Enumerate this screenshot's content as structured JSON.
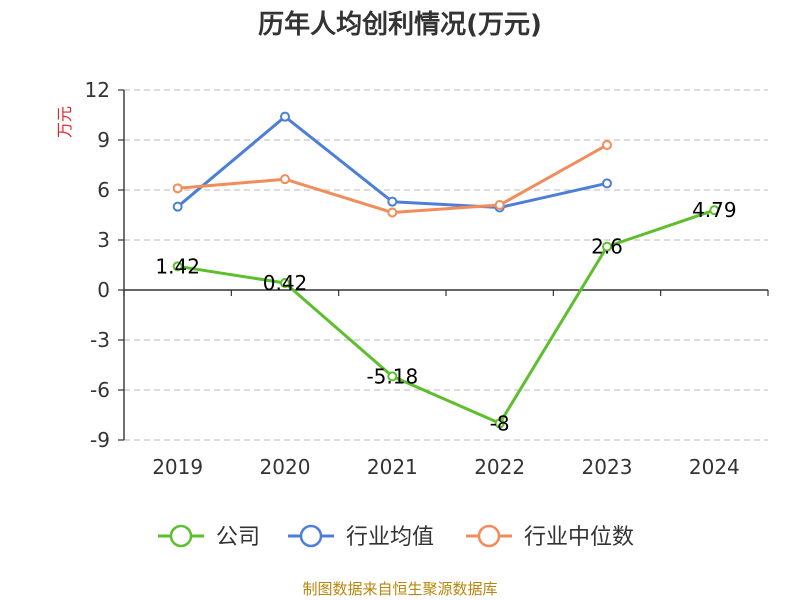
{
  "source_note": "制图数据来自恒生聚源数据库",
  "chart_data": {
    "type": "line",
    "title": "历年人均创利情况(万元)",
    "ylabel": "万元",
    "xlabel": "",
    "categories": [
      "2019",
      "2020",
      "2021",
      "2022",
      "2023",
      "2024"
    ],
    "ylim": [
      -9,
      12
    ],
    "yticks": [
      12,
      9,
      6,
      3,
      0,
      -3,
      -6,
      -9
    ],
    "grid": true,
    "legend_position": "bottom",
    "series": [
      {
        "name": "公司",
        "color": "#5fbe2e",
        "values": [
          1.42,
          0.42,
          -5.18,
          -8,
          2.6,
          4.79
        ],
        "labels": [
          "1.42",
          "0.42",
          "-5.18",
          "-8",
          "2.6",
          "4.79"
        ]
      },
      {
        "name": "行业均值",
        "color": "#4e7fd6",
        "values": [
          5.0,
          10.4,
          5.3,
          4.95,
          6.4,
          null
        ]
      },
      {
        "name": "行业中位数",
        "color": "#f28c5a",
        "values": [
          6.1,
          6.65,
          4.65,
          5.1,
          8.7,
          null
        ]
      }
    ],
    "ylabel_color": "#e0262b"
  }
}
